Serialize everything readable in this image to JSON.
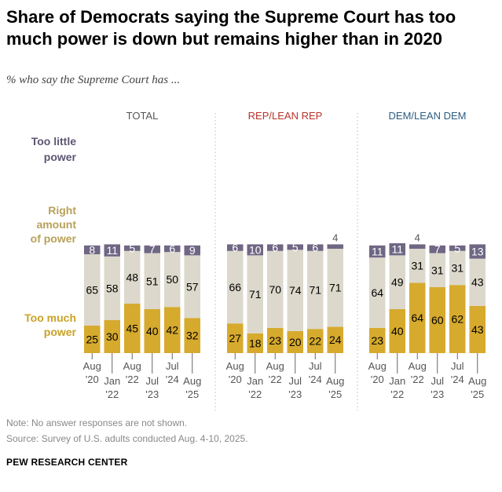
{
  "title": "Share of Democrats saying the Supreme Court has too much power is down but remains higher than in 2020",
  "subtitle": "% who say the Supreme Court has ...",
  "note": "Note: No answer responses are not shown.",
  "source": "Source: Survey of U.S. adults conducted Aug. 4-10, 2025.",
  "brand": "PEW RESEARCH CENTER",
  "colors": {
    "too_little": "#6f6784",
    "right_amount": "#dcd8cc",
    "too_much": "#d6aa2d",
    "label_too_little": "#5e5673",
    "label_right_amount": "#b8a15a",
    "label_too_much": "#c9a227",
    "panel_total": "#555555",
    "panel_rep": "#b8342a",
    "panel_dem": "#2c5d82"
  },
  "chart_data": {
    "type": "bar",
    "stacked": true,
    "orientation": "vertical",
    "row_labels": [
      {
        "key": "too_little",
        "lines": [
          "Too little",
          "power"
        ]
      },
      {
        "key": "right_amount",
        "lines": [
          "Right",
          "amount",
          "of power"
        ]
      },
      {
        "key": "too_much",
        "lines": [
          "Too much",
          "power"
        ]
      }
    ],
    "categories": [
      {
        "month": "Aug",
        "year": "'20"
      },
      {
        "month": "Jan",
        "year": "'22"
      },
      {
        "month": "Aug",
        "year": "'22"
      },
      {
        "month": "Jul",
        "year": "'23"
      },
      {
        "month": "Jul",
        "year": "'24"
      },
      {
        "month": "Aug",
        "year": "'25"
      }
    ],
    "ylim": [
      0,
      100
    ],
    "panels": [
      {
        "title": "TOTAL",
        "too_much": [
          25,
          30,
          45,
          40,
          42,
          32
        ],
        "right_amount": [
          65,
          58,
          48,
          51,
          50,
          57
        ],
        "too_little": [
          8,
          11,
          5,
          7,
          6,
          9
        ]
      },
      {
        "title": "REP/LEAN REP",
        "too_much": [
          27,
          18,
          23,
          20,
          22,
          24
        ],
        "right_amount": [
          66,
          71,
          70,
          74,
          71,
          71
        ],
        "too_little": [
          6,
          10,
          6,
          5,
          6,
          4
        ]
      },
      {
        "title": "DEM/LEAN DEM",
        "too_much": [
          23,
          40,
          64,
          60,
          62,
          43
        ],
        "right_amount": [
          64,
          49,
          31,
          31,
          31,
          43
        ],
        "too_little": [
          11,
          11,
          4,
          7,
          5,
          13
        ]
      }
    ]
  }
}
